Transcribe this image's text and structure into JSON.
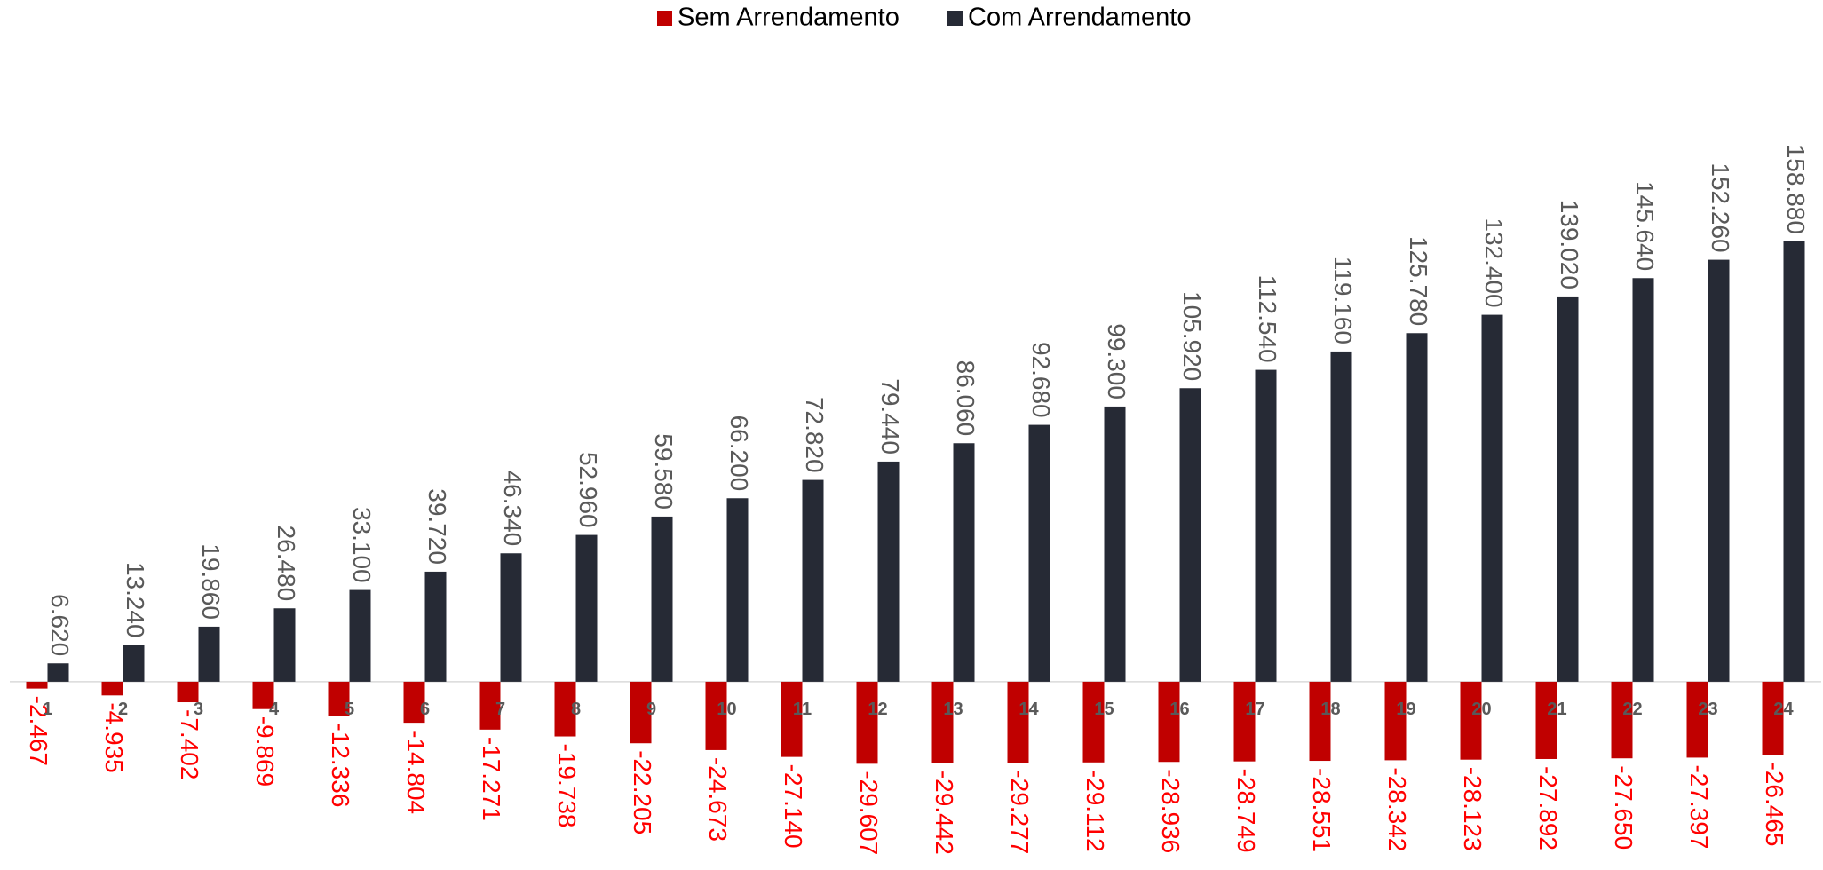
{
  "chart_data": {
    "type": "bar",
    "categories": [
      "1",
      "2",
      "3",
      "4",
      "5",
      "6",
      "7",
      "8",
      "9",
      "10",
      "11",
      "12",
      "13",
      "14",
      "15",
      "16",
      "17",
      "18",
      "19",
      "20",
      "21",
      "22",
      "23",
      "24"
    ],
    "series": [
      {
        "name": "Sem Arrendamento",
        "color": "#c00000",
        "label_color": "#ff0000",
        "values": [
          -2467,
          -4935,
          -7402,
          -9869,
          -12336,
          -14804,
          -17271,
          -19738,
          -22205,
          -24673,
          -27140,
          -29607,
          -29442,
          -29277,
          -29112,
          -28936,
          -28749,
          -28551,
          -28342,
          -28123,
          -27892,
          -27650,
          -27397,
          -26465
        ],
        "value_labels": [
          "-2.467",
          "-4.935",
          "-7.402",
          "-9.869",
          "-12.336",
          "-14.804",
          "-17.271",
          "-19.738",
          "-22.205",
          "-24.673",
          "-27.140",
          "-29.607",
          "-29.442",
          "-29.277",
          "-29.112",
          "-28.936",
          "-28.749",
          "-28.551",
          "-28.342",
          "-28.123",
          "-27.892",
          "-27.650",
          "-27.397",
          "-26.465"
        ]
      },
      {
        "name": "Com Arrendamento",
        "color": "#262a35",
        "label_color": "#595959",
        "values": [
          6620,
          13240,
          19860,
          26480,
          33100,
          39720,
          46340,
          52960,
          59580,
          66200,
          72820,
          79440,
          86060,
          92680,
          99300,
          105920,
          112540,
          119160,
          125780,
          132400,
          139020,
          145640,
          152260,
          158880
        ],
        "value_labels": [
          "6.620",
          "13.240",
          "19.860",
          "26.480",
          "33.100",
          "39.720",
          "46.340",
          "52.960",
          "59.580",
          "66.200",
          "72.820",
          "79.440",
          "86.060",
          "92.680",
          "99.300",
          "105.920",
          "112.540",
          "119.160",
          "125.780",
          "132.400",
          "139.020",
          "145.640",
          "152.260",
          "158.880"
        ]
      }
    ],
    "ylim": [
      -50000,
      180000
    ]
  }
}
